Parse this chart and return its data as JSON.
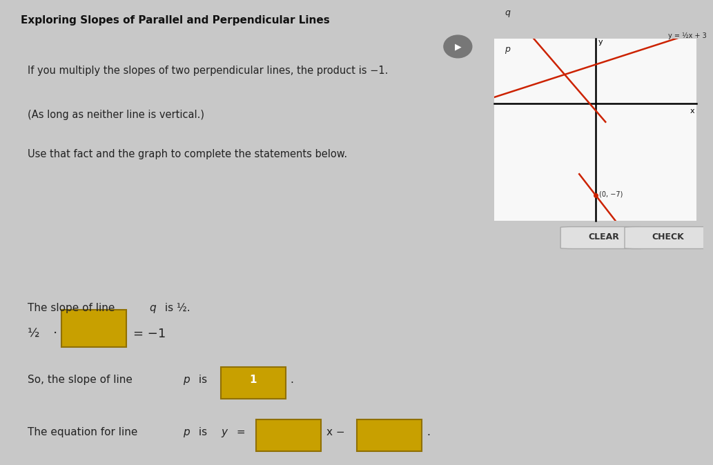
{
  "title": "Exploring Slopes of Parallel and Perpendicular Lines",
  "bg_color_main": "#c8c8c8",
  "panel_top_bg": "#ffffff",
  "graph_line_color": "#000000",
  "line_color": "#cc2200",
  "text_color": "#222222",
  "instruction_line1": "If you multiply the slopes of two perpendicular lines, the product is −1.",
  "instruction_line2": "(As long as neither line is vertical.)",
  "instruction_line3": "Use that fact and the graph to complete the statements below.",
  "graph_label": "y = ½x + 3",
  "label_p": "p",
  "label_q": "q",
  "section3_filled": "1",
  "yellow_box_color": "#c8a000",
  "row_bg_white": "#f5f5f5",
  "btn_color": "#e0e0e0",
  "btn_border": "#aaaaaa"
}
